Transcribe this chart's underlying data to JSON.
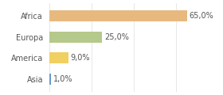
{
  "categories": [
    "Africa",
    "Europa",
    "America",
    "Asia"
  ],
  "values": [
    65.0,
    25.0,
    9.0,
    1.0
  ],
  "bar_colors": [
    "#e8b97e",
    "#b5c98a",
    "#f0d060",
    "#6699cc"
  ],
  "labels": [
    "65,0%",
    "25,0%",
    "9,0%",
    "1,0%"
  ],
  "xlim": [
    0,
    80
  ],
  "background_color": "#ffffff",
  "bar_height": 0.52,
  "label_fontsize": 7.0,
  "tick_fontsize": 7.0
}
